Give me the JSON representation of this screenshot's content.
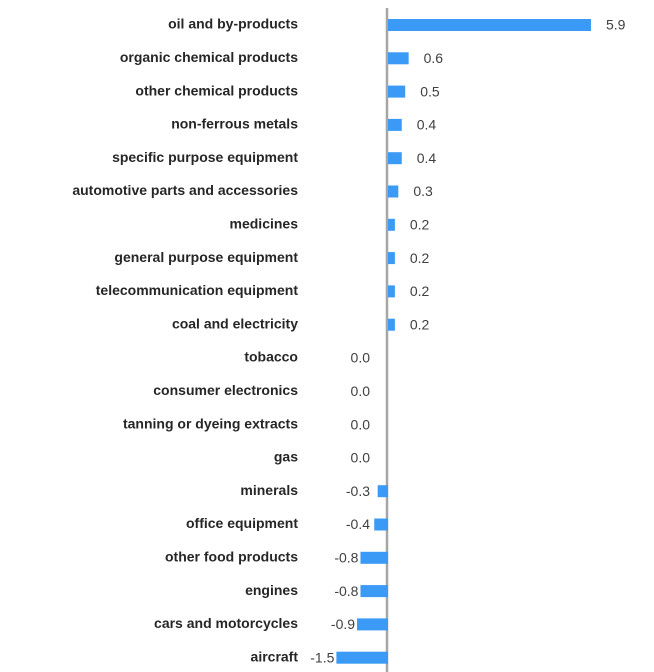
{
  "chart_data": {
    "type": "bar",
    "orientation": "horizontal",
    "categories": [
      "oil and by-products",
      "organic chemical products",
      "other chemical products",
      "non-ferrous metals",
      "specific purpose equipment",
      "automotive parts and accessories",
      "medicines",
      "general purpose equipment",
      "telecommunication equipment",
      "coal and electricity",
      "tobacco",
      "consumer electronics",
      "tanning or dyeing extracts",
      "gas",
      "minerals",
      "office equipment",
      "other food products",
      "engines",
      "cars and motorcycles",
      "aircraft"
    ],
    "values": [
      5.9,
      0.6,
      0.5,
      0.4,
      0.4,
      0.3,
      0.2,
      0.2,
      0.2,
      0.2,
      0,
      0,
      0,
      0,
      -0.3,
      -0.4,
      -0.8,
      -0.8,
      -0.9,
      -1.5
    ],
    "value_labels": [
      "5.9",
      "0.6",
      "0.5",
      "0.4",
      "0.4",
      "0.3",
      "0.2",
      "0.2",
      "0.2",
      "0.2",
      "0.0",
      "0.0",
      "0.0",
      "0.0",
      "-0.3",
      "-0.4",
      "-0.8",
      "-0.8",
      "-0.9",
      "-1.5"
    ],
    "color": "#3a9af5",
    "xlim": [
      -2,
      7
    ]
  }
}
